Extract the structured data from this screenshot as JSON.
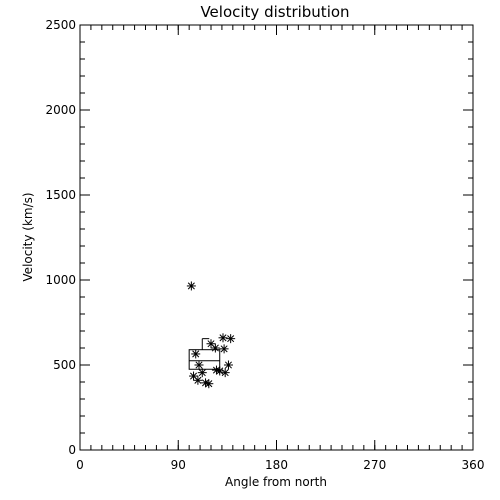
{
  "chart_data": {
    "type": "scatter",
    "title": "Velocity distribution",
    "xlabel": "Angle from north",
    "ylabel": "Velocity (km/s)",
    "xlim": [
      0,
      360
    ],
    "ylim": [
      0,
      2500
    ],
    "x_ticks": [
      0,
      90,
      180,
      270,
      360
    ],
    "y_ticks": [
      0,
      500,
      1000,
      1500,
      2000,
      2500
    ],
    "x_minor_step": 10,
    "y_minor_step": 100,
    "grid": false,
    "marker": "asterisk",
    "points": [
      {
        "x": 102,
        "y": 965
      },
      {
        "x": 106,
        "y": 565
      },
      {
        "x": 109,
        "y": 500
      },
      {
        "x": 104,
        "y": 435
      },
      {
        "x": 108,
        "y": 410
      },
      {
        "x": 112,
        "y": 455
      },
      {
        "x": 115,
        "y": 395
      },
      {
        "x": 118,
        "y": 390
      },
      {
        "x": 120,
        "y": 625
      },
      {
        "x": 124,
        "y": 600
      },
      {
        "x": 125,
        "y": 470
      },
      {
        "x": 128,
        "y": 465
      },
      {
        "x": 131,
        "y": 660
      },
      {
        "x": 132,
        "y": 595
      },
      {
        "x": 133,
        "y": 455
      },
      {
        "x": 136,
        "y": 500
      },
      {
        "x": 138,
        "y": 655
      }
    ],
    "boxplot": {
      "x_left": 100,
      "x_right": 128,
      "q1": 475,
      "median": 525,
      "q3": 590,
      "whisker_x": 112,
      "whisker_high": 655
    }
  }
}
